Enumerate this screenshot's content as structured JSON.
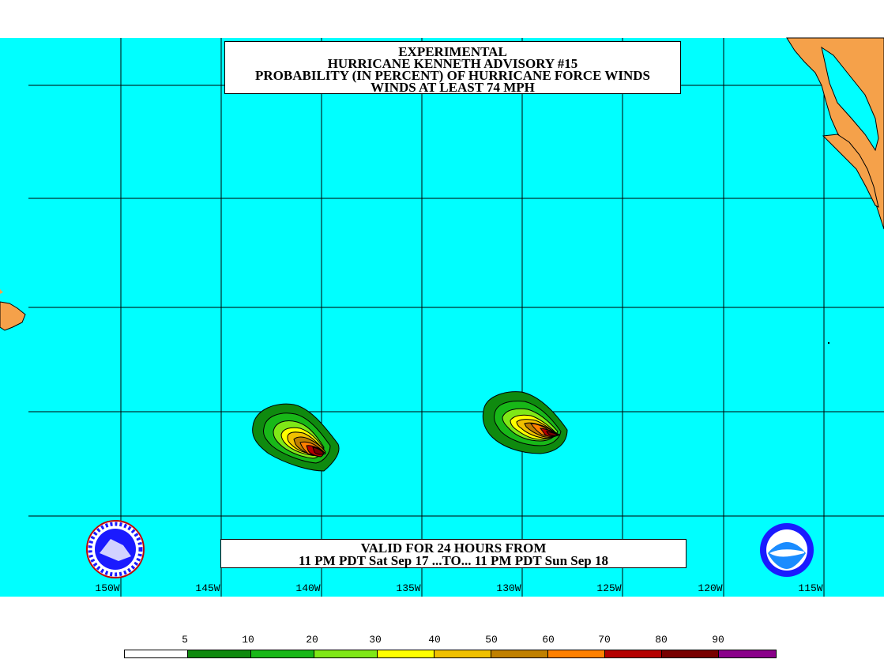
{
  "title": {
    "line1": "EXPERIMENTAL",
    "line2": "HURRICANE KENNETH ADVISORY #15",
    "line3": "PROBABILITY (IN PERCENT) OF HURRICANE FORCE WINDS",
    "line4": "WINDS AT LEAST 74 MPH"
  },
  "valid": {
    "line1": "VALID FOR 24 HOURS FROM",
    "line2": "11 PM PDT Sat Sep 17 ...TO... 11 PM PDT Sun Sep 18"
  },
  "longitude_labels": [
    "150W",
    "145W",
    "140W",
    "135W",
    "130W",
    "125W",
    "120W",
    "115W"
  ],
  "legend": {
    "values": [
      "5",
      "10",
      "20",
      "30",
      "40",
      "50",
      "60",
      "70",
      "80",
      "90"
    ],
    "colors": [
      "#ffffff",
      "#0f8a0f",
      "#18b818",
      "#7fe817",
      "#ffff00",
      "#f0c000",
      "#c08000",
      "#ff8000",
      "#b40000",
      "#780000",
      "#8a008a"
    ]
  },
  "colors": {
    "ocean": "#00ffff",
    "land": "#f5a14a",
    "grid": "#000000"
  },
  "icons": {
    "left_logo": "nws-logo-icon",
    "right_logo": "noaa-logo-icon"
  }
}
